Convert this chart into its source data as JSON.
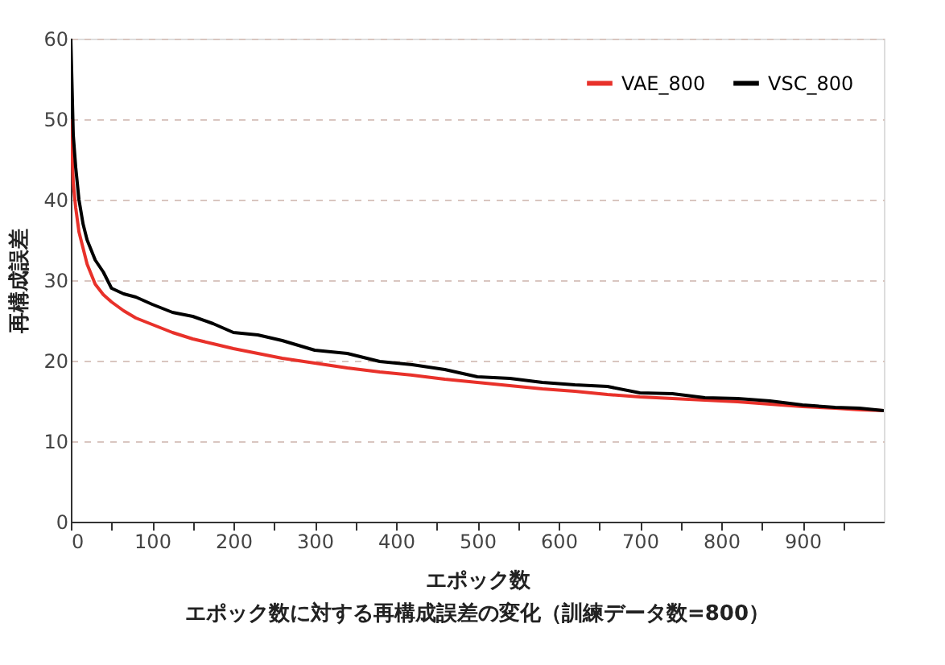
{
  "chart_data": {
    "type": "line",
    "xlabel": "エポック数",
    "ylabel": "再構成誤差",
    "annotations": [
      "エポック数に対する再構成誤差の変化（訓練データ数=800）"
    ],
    "x": [
      0,
      3,
      6,
      10,
      15,
      20,
      30,
      40,
      50,
      65,
      80,
      100,
      125,
      150,
      175,
      200,
      230,
      260,
      300,
      340,
      380,
      420,
      460,
      500,
      540,
      580,
      620,
      660,
      700,
      740,
      780,
      820,
      860,
      900,
      940,
      970,
      1000
    ],
    "series": [
      {
        "name": "VAE_800",
        "color": "#e8312a",
        "values": [
          50,
          42,
          39,
          36,
          34,
          32,
          29.5,
          28.2,
          27.3,
          26.2,
          25.3,
          24.5,
          23.5,
          22.7,
          22.1,
          21.5,
          20.9,
          20.3,
          19.7,
          19.1,
          18.6,
          18.2,
          17.7,
          17.3,
          16.9,
          16.5,
          16.2,
          15.8,
          15.5,
          15.3,
          15.1,
          14.9,
          14.6,
          14.3,
          14.1,
          13.9,
          13.8
        ]
      },
      {
        "name": "VSC_800",
        "color": "#000000",
        "values": [
          60,
          48,
          44,
          40,
          37,
          35,
          32.5,
          31,
          29,
          28.3,
          27.9,
          27,
          26,
          25.5,
          24.6,
          23.5,
          23.2,
          22.5,
          21.3,
          20.9,
          19.9,
          19.5,
          18.9,
          18,
          17.8,
          17.3,
          17,
          16.8,
          16,
          15.9,
          15.4,
          15.3,
          15,
          14.5,
          14.2,
          14.1,
          13.8
        ]
      }
    ],
    "xlim": [
      0,
      1000
    ],
    "ylim": [
      0,
      60
    ],
    "xticks": [
      0,
      {
        "value": 50,
        "label": null
      },
      100,
      {
        "value": 150,
        "label": null
      },
      200,
      {
        "value": 250,
        "label": null
      },
      300,
      {
        "value": 350,
        "label": null
      },
      400,
      {
        "value": 450,
        "label": null
      },
      500,
      {
        "value": 550,
        "label": null
      },
      600,
      {
        "value": 650,
        "label": null
      },
      700,
      {
        "value": 750,
        "label": null
      },
      800,
      {
        "value": 850,
        "label": null
      },
      900,
      {
        "value": 950,
        "label": null
      }
    ],
    "yticks": [
      0,
      10,
      20,
      30,
      40,
      50,
      60
    ],
    "grid": "y",
    "legend": "top right",
    "marker": "none",
    "line_style": "solid"
  }
}
